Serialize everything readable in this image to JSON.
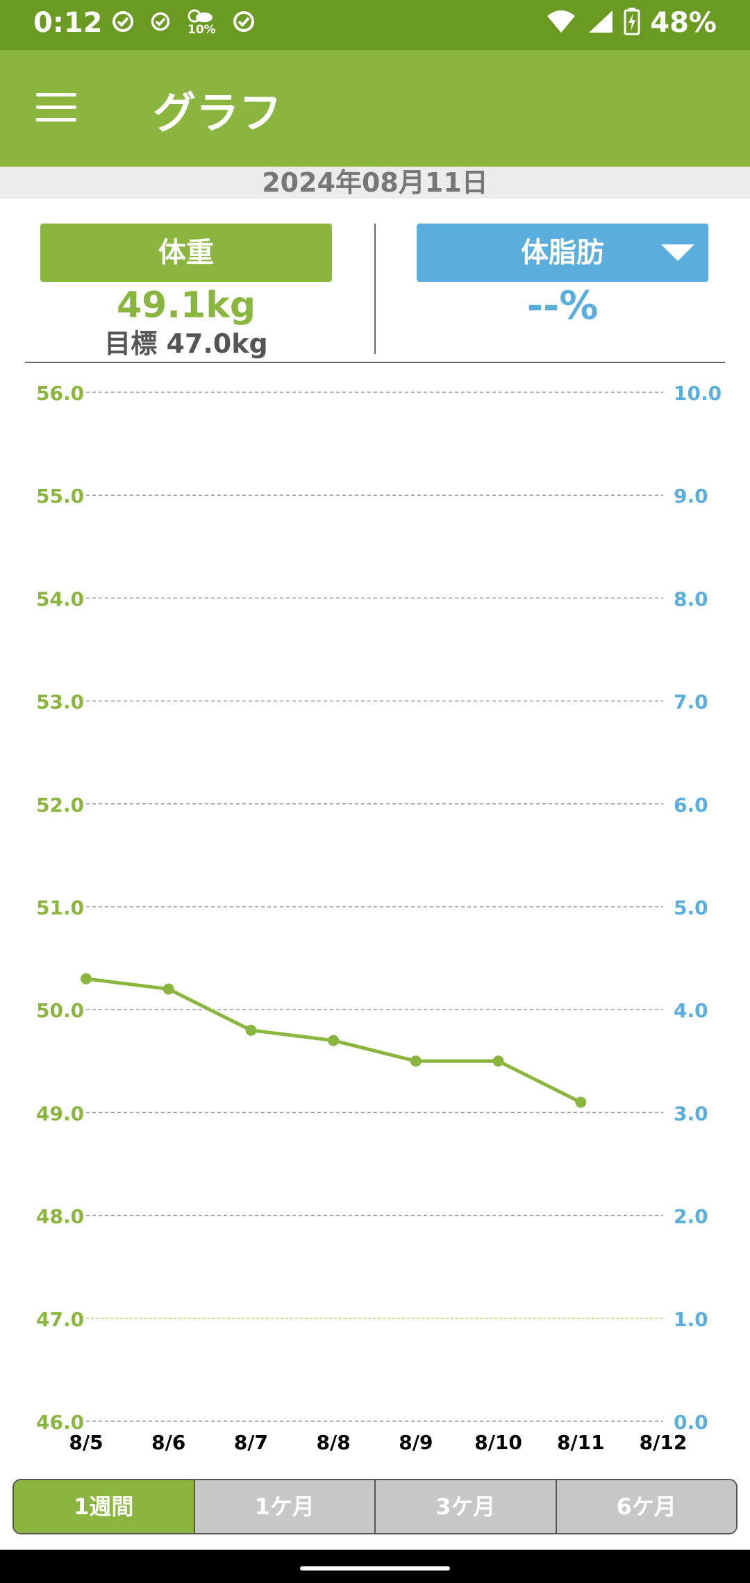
{
  "status_bar": {
    "time": "0:12",
    "battery": "48%",
    "icons": [
      "check-circle-icon",
      "check-circle-icon",
      "weather-icon",
      "check-circle-icon",
      "wifi-icon",
      "signal-icon",
      "battery-charging-icon"
    ],
    "weather_text": "10%"
  },
  "app_bar": {
    "title": "グラフ"
  },
  "date": "2024年08月11日",
  "weight": {
    "label": "体重",
    "value": "49.1kg",
    "goal": "目標 47.0kg"
  },
  "body_fat": {
    "label": "体脂肪",
    "value": "--%"
  },
  "chart_data": {
    "type": "line",
    "categories": [
      "8/5",
      "8/6",
      "8/7",
      "8/8",
      "8/9",
      "8/10",
      "8/11",
      "8/12"
    ],
    "series": [
      {
        "values": [
          50.3,
          50.2,
          49.8,
          49.7,
          49.5,
          49.5,
          49.1,
          null
        ],
        "color": "#8ab63f",
        "axis": "left"
      }
    ],
    "y_left": {
      "min": 46.0,
      "max": 56.0,
      "ticks": [
        "56.0",
        "55.0",
        "54.0",
        "53.0",
        "52.0",
        "51.0",
        "50.0",
        "49.0",
        "48.0",
        "47.0",
        "46.0"
      ],
      "color": "#8ab63f"
    },
    "y_right": {
      "min": 0.0,
      "max": 10.0,
      "ticks": [
        "10.0",
        "9.0",
        "8.0",
        "7.0",
        "6.0",
        "5.0",
        "4.0",
        "3.0",
        "2.0",
        "1.0",
        "0.0"
      ],
      "color": "#5aaedd"
    },
    "goal": 47.0,
    "grid": true
  },
  "periods": [
    "1週間",
    "1ケ月",
    "3ケ月",
    "6ケ月"
  ],
  "active_period": 0
}
